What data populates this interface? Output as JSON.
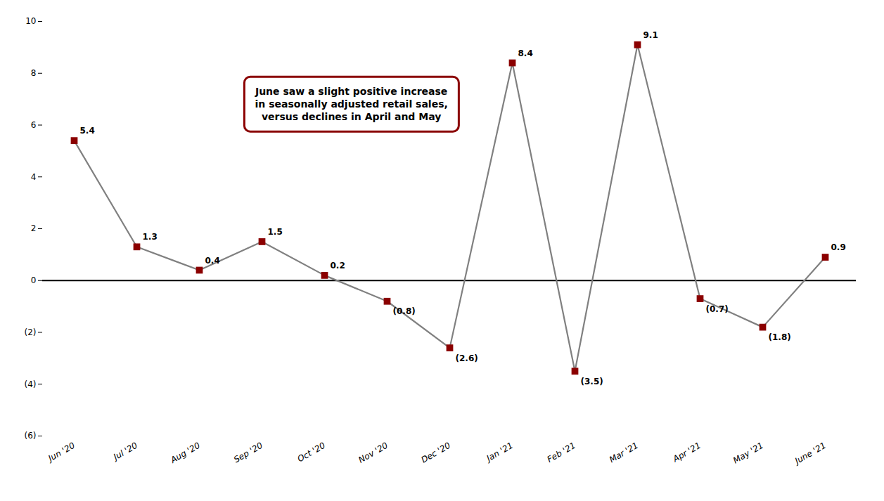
{
  "chart_data": {
    "type": "line",
    "categories": [
      "Jun '20",
      "Jul '20",
      "Aug '20",
      "Sep '20",
      "Oct '20",
      "Nov '20",
      "Dec '20",
      "Jan '21",
      "Feb '21",
      "Mar '21",
      "Apr '21",
      "May '21",
      "June '21"
    ],
    "values": [
      5.4,
      1.3,
      0.4,
      1.5,
      0.2,
      -0.8,
      -2.6,
      8.4,
      -3.5,
      9.1,
      -0.7,
      -1.8,
      0.9
    ],
    "value_labels": [
      "5.4",
      "1.3",
      "0.4",
      "1.5",
      "0.2",
      "(0.8)",
      "(2.6)",
      "8.4",
      "(3.5)",
      "9.1",
      "(0.7)",
      "(1.8)",
      "0.9"
    ],
    "data_labels": true,
    "color": "#808080",
    "colors": [
      "#8B0000",
      "#8B0000",
      "#8B0000",
      "#8B0000",
      "#8B0000",
      "#8B0000",
      "#8B0000",
      "#8B0000",
      "#8B0000",
      "#8B0000",
      "#8B0000",
      "#8B0000",
      "#8B0000"
    ],
    "marker": "square",
    "ylim": [
      -6,
      10
    ],
    "yticks": [
      {
        "value": -6,
        "label": "(6)"
      },
      {
        "value": -4,
        "label": "(4)"
      },
      {
        "value": -2,
        "label": "(2)"
      },
      0,
      2,
      4,
      6,
      8,
      10
    ],
    "grid": false,
    "annotations": [
      {
        "text": "June saw a slight positive increase\nin seasonally adjusted retail sales,\nversus declines in April and May"
      }
    ]
  }
}
